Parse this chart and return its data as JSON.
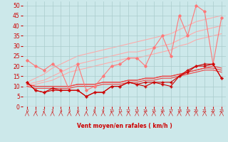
{
  "xlabel": "Vent moyen/en rafales ( km/h )",
  "background_color": "#cce8ea",
  "grid_color": "#aacccc",
  "x": [
    0,
    1,
    2,
    3,
    4,
    5,
    6,
    7,
    8,
    9,
    10,
    11,
    12,
    13,
    14,
    15,
    16,
    17,
    18,
    19,
    20,
    21,
    22,
    23
  ],
  "ylim": [
    0,
    52
  ],
  "yticks": [
    0,
    5,
    10,
    15,
    20,
    25,
    30,
    35,
    40,
    45,
    50
  ],
  "line_pink_zigzag": [
    23,
    20,
    18,
    21,
    18,
    8,
    21,
    8,
    10,
    15,
    20,
    21,
    24,
    24,
    20,
    29,
    35,
    25,
    45,
    35,
    50,
    47,
    21,
    44
  ],
  "line_pink_trend1": [
    12,
    14,
    16,
    19,
    21,
    23,
    25,
    26,
    27,
    28,
    29,
    30,
    31,
    32,
    33,
    34,
    35,
    36,
    38,
    40,
    42,
    43,
    44,
    45
  ],
  "line_pink_trend2": [
    11,
    12,
    13,
    15,
    17,
    19,
    21,
    22,
    23,
    24,
    25,
    26,
    27,
    27,
    28,
    29,
    30,
    31,
    33,
    35,
    37,
    38,
    39,
    40
  ],
  "line_pink_trend3": [
    10,
    11,
    12,
    13,
    15,
    17,
    18,
    19,
    20,
    21,
    22,
    23,
    24,
    24,
    25,
    26,
    27,
    28,
    30,
    31,
    33,
    34,
    35,
    36
  ],
  "line_dark_zigzag1": [
    12,
    8,
    7,
    8,
    8,
    8,
    8,
    5,
    7,
    7,
    10,
    10,
    12,
    11,
    12,
    12,
    12,
    12,
    15,
    17,
    20,
    20,
    21,
    14
  ],
  "line_dark_zigzag2": [
    12,
    8,
    7,
    9,
    8,
    8,
    8,
    5,
    7,
    7,
    10,
    10,
    12,
    11,
    10,
    12,
    11,
    10,
    15,
    18,
    20,
    21,
    21,
    14
  ],
  "line_dark_trend1": [
    11,
    10,
    10,
    10,
    10,
    10,
    11,
    11,
    11,
    12,
    12,
    12,
    13,
    13,
    14,
    14,
    15,
    15,
    16,
    17,
    18,
    19,
    19,
    18
  ],
  "line_dark_trend2": [
    11,
    10,
    10,
    10,
    10,
    10,
    11,
    11,
    11,
    12,
    12,
    12,
    13,
    13,
    14,
    14,
    15,
    15,
    16,
    17,
    18,
    19,
    20,
    19
  ],
  "line_dark_trend3": [
    10,
    9,
    9,
    9,
    9,
    9,
    10,
    10,
    10,
    11,
    11,
    11,
    12,
    12,
    13,
    13,
    14,
    14,
    15,
    16,
    17,
    18,
    18,
    17
  ],
  "color_pink_dark": "#ff7777",
  "color_pink_light": "#ffaaaa",
  "color_dark_red": "#cc0000",
  "color_med_red": "#ee4444"
}
